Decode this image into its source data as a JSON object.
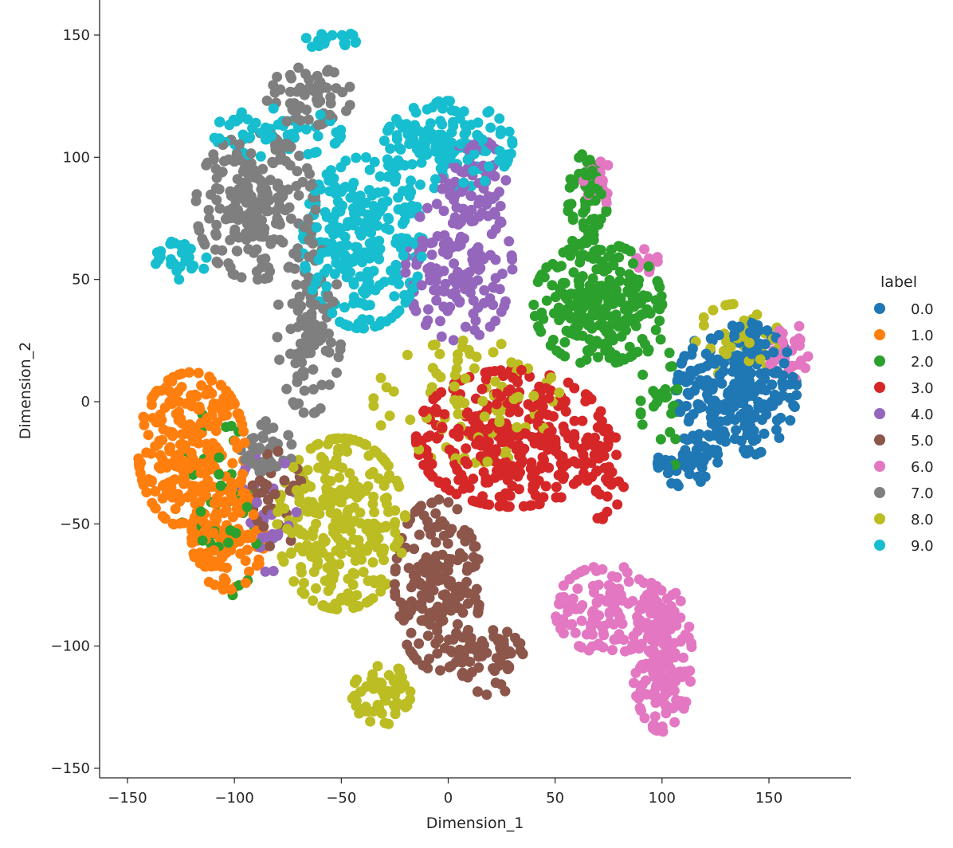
{
  "chart_data": {
    "type": "scatter",
    "title": "",
    "xlabel": "Dimension_1",
    "ylabel": "Dimension_2",
    "xlim": [
      -162,
      190
    ],
    "ylim": [
      -154,
      161
    ],
    "xticks": [
      -150,
      -100,
      -50,
      0,
      50,
      100,
      150
    ],
    "yticks": [
      -150,
      -100,
      -50,
      0,
      50,
      100,
      150
    ],
    "grid": false,
    "legend": {
      "title": "label",
      "placement": "right"
    },
    "series": [
      {
        "name": "0.0",
        "color": "#1f77b4",
        "clusters": [
          {
            "center": [
              135,
              5
            ],
            "radius": [
              28,
              28
            ],
            "count": 260
          },
          {
            "center": [
              112,
              -25
            ],
            "radius": [
              14,
              10
            ],
            "count": 50
          }
        ]
      },
      {
        "name": "1.0",
        "color": "#ff7f0e",
        "clusters": [
          {
            "center": [
              -120,
              -20
            ],
            "radius": [
              25,
              32
            ],
            "count": 260
          },
          {
            "center": [
              -103,
              -55
            ],
            "radius": [
              17,
              22
            ],
            "count": 100
          }
        ]
      },
      {
        "name": "2.0",
        "color": "#2ca02c",
        "clusters": [
          {
            "center": [
              70,
              40
            ],
            "radius": [
              30,
              25
            ],
            "count": 240
          },
          {
            "center": [
              65,
              80
            ],
            "radius": [
              9,
              22
            ],
            "count": 60
          },
          {
            "center": [
              100,
              -2
            ],
            "radius": [
              10,
              30
            ],
            "count": 30
          },
          {
            "center": [
              -105,
              -40
            ],
            "radius": [
              20,
              40
            ],
            "count": 40
          }
        ]
      },
      {
        "name": "3.0",
        "color": "#d62728",
        "clusters": [
          {
            "center": [
              30,
              -15
            ],
            "radius": [
              45,
              28
            ],
            "count": 330
          },
          {
            "center": [
              72,
              -30
            ],
            "radius": [
              12,
              18
            ],
            "count": 40
          }
        ]
      },
      {
        "name": "4.0",
        "color": "#9467bd",
        "clusters": [
          {
            "center": [
              5,
              55
            ],
            "radius": [
              25,
              30
            ],
            "count": 160
          },
          {
            "center": [
              12,
              90
            ],
            "radius": [
              15,
              18
            ],
            "count": 60
          },
          {
            "center": [
              -85,
              -45
            ],
            "radius": [
              14,
              25
            ],
            "count": 30
          }
        ]
      },
      {
        "name": "5.0",
        "color": "#8c564b",
        "clusters": [
          {
            "center": [
              -5,
              -75
            ],
            "radius": [
              20,
              35
            ],
            "count": 200
          },
          {
            "center": [
              20,
              -105
            ],
            "radius": [
              15,
              15
            ],
            "count": 60
          },
          {
            "center": [
              -80,
              -40
            ],
            "radius": [
              12,
              20
            ],
            "count": 30
          }
        ]
      },
      {
        "name": "6.0",
        "color": "#e377c2",
        "clusters": [
          {
            "center": [
              100,
              -105
            ],
            "radius": [
              14,
              30
            ],
            "count": 170
          },
          {
            "center": [
              75,
              -85
            ],
            "radius": [
              25,
              18
            ],
            "count": 120
          },
          {
            "center": [
              70,
              90
            ],
            "radius": [
              8,
              10
            ],
            "count": 25
          },
          {
            "center": [
              160,
              20
            ],
            "radius": [
              10,
              12
            ],
            "count": 30
          },
          {
            "center": [
              93,
              58
            ],
            "radius": [
              5,
              5
            ],
            "count": 12
          }
        ]
      },
      {
        "name": "7.0",
        "color": "#7f7f7f",
        "clusters": [
          {
            "center": [
              -90,
              80
            ],
            "radius": [
              28,
              30
            ],
            "count": 220
          },
          {
            "center": [
              -65,
              125
            ],
            "radius": [
              20,
              12
            ],
            "count": 60
          },
          {
            "center": [
              -65,
              30
            ],
            "radius": [
              15,
              35
            ],
            "count": 100
          },
          {
            "center": [
              -85,
              -20
            ],
            "radius": [
              12,
              12
            ],
            "count": 40
          }
        ]
      },
      {
        "name": "8.0",
        "color": "#bcbd22",
        "clusters": [
          {
            "center": [
              -50,
              -50
            ],
            "radius": [
              30,
              35
            ],
            "count": 300
          },
          {
            "center": [
              -30,
              -120
            ],
            "radius": [
              15,
              12
            ],
            "count": 60
          },
          {
            "center": [
              10,
              0
            ],
            "radius": [
              45,
              25
            ],
            "count": 90
          },
          {
            "center": [
              135,
              25
            ],
            "radius": [
              20,
              15
            ],
            "count": 35
          }
        ]
      },
      {
        "name": "9.0",
        "color": "#17becf",
        "clusters": [
          {
            "center": [
              -40,
              65
            ],
            "radius": [
              28,
              35
            ],
            "count": 260
          },
          {
            "center": [
              0,
              105
            ],
            "radius": [
              30,
              18
            ],
            "count": 150
          },
          {
            "center": [
              -80,
              110
            ],
            "radius": [
              30,
              10
            ],
            "count": 60
          },
          {
            "center": [
              -125,
              58
            ],
            "radius": [
              12,
              8
            ],
            "count": 30
          },
          {
            "center": [
              -55,
              148
            ],
            "radius": [
              12,
              4
            ],
            "count": 20
          }
        ]
      }
    ]
  }
}
